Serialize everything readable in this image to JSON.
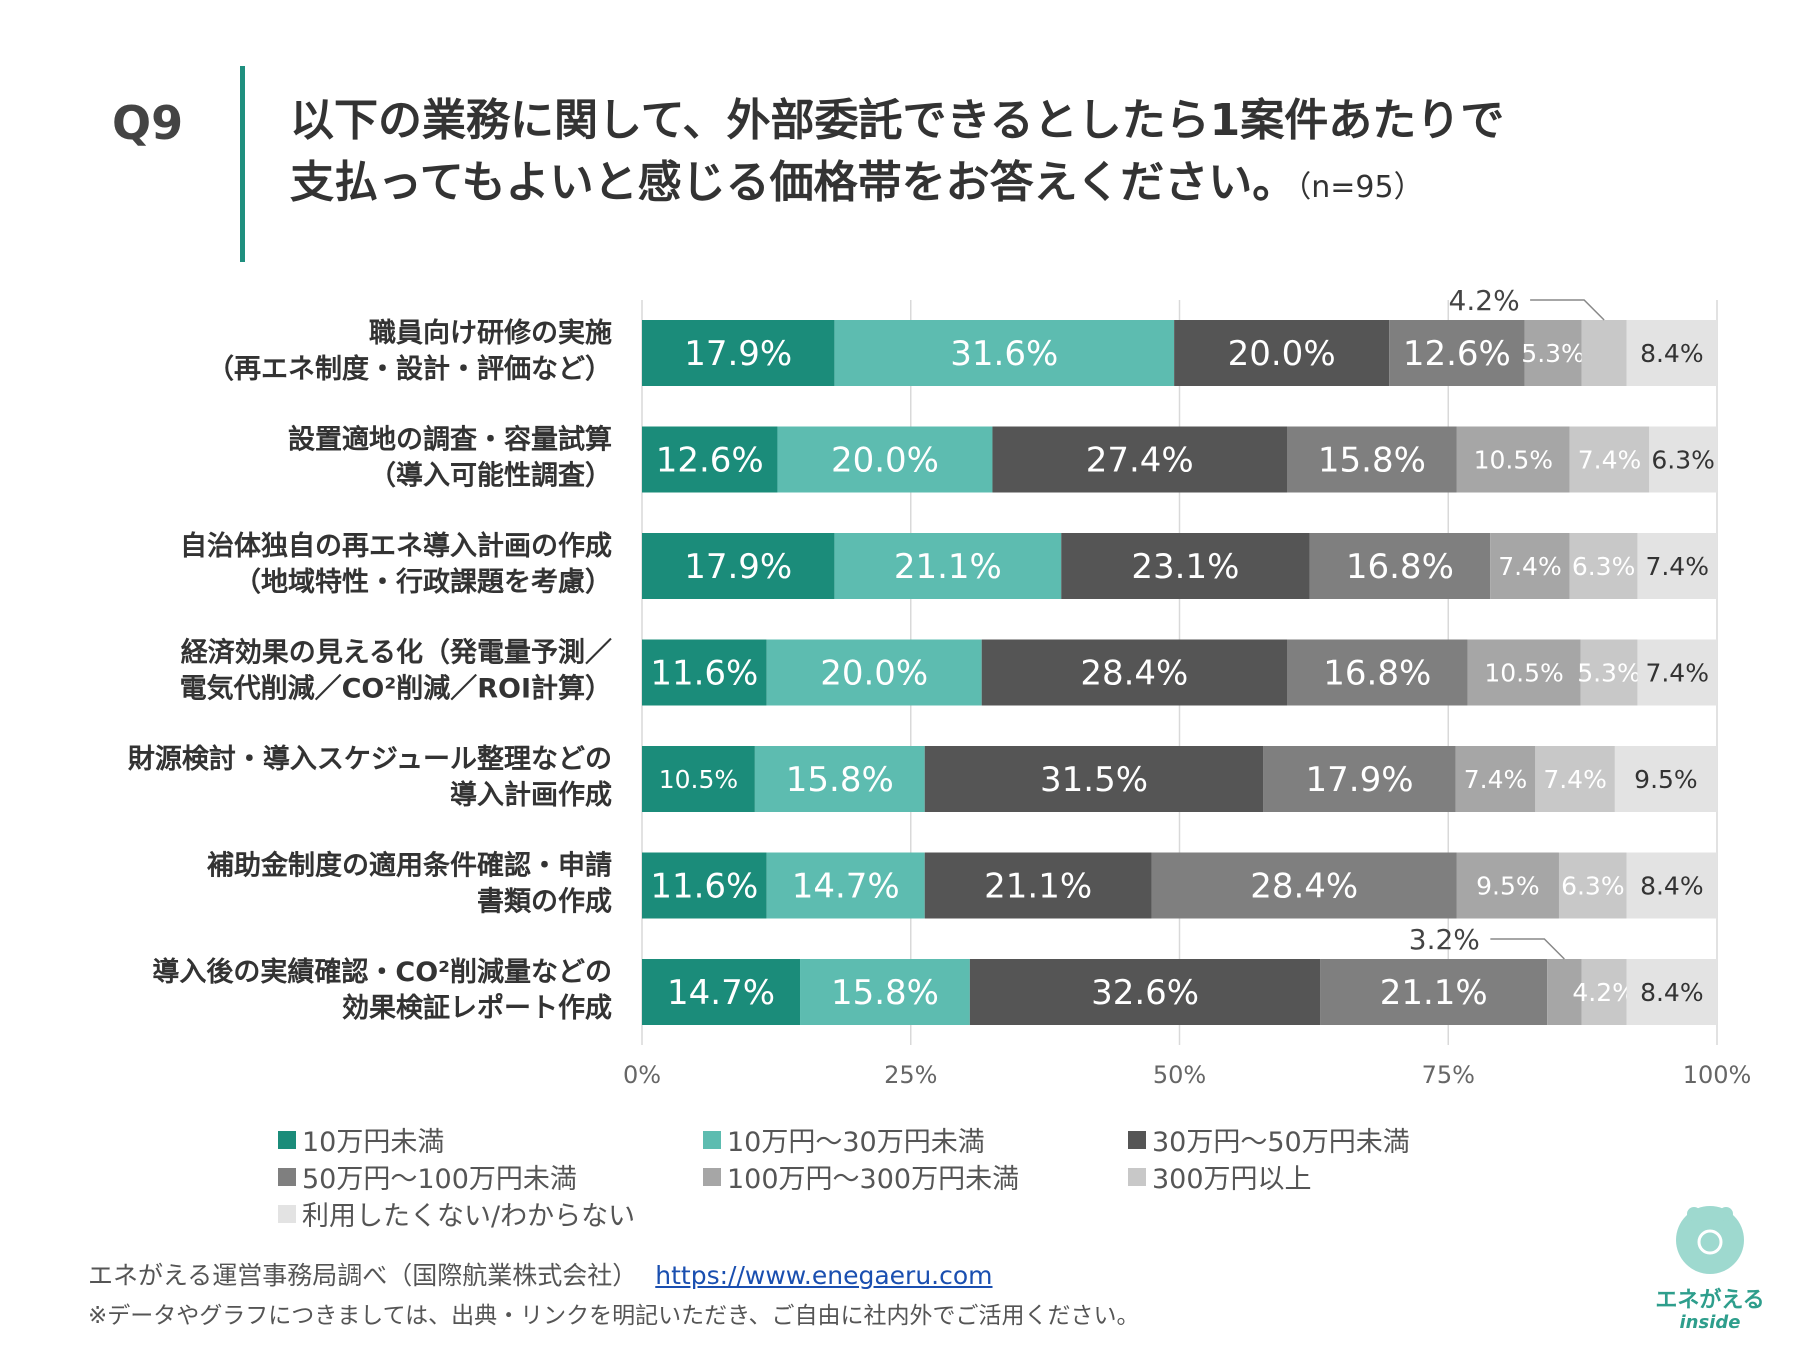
{
  "question": {
    "label": "Q9",
    "title_line1": "以下の業務に関して、外部委託できるとしたら1案件あたりで",
    "title_line2": "支払ってもよいと感じる価格帯をお答えください。",
    "n": "（n=95）"
  },
  "chart_data": {
    "type": "bar",
    "orientation": "horizontal-stacked-100",
    "categories": [
      [
        "職員向け研修の実施",
        "（再エネ制度・設計・評価など）"
      ],
      [
        "設置適地の調査・容量試算",
        "（導入可能性調査）"
      ],
      [
        "自治体独自の再エネ導入計画の作成",
        "（地域特性・行政課題を考慮）"
      ],
      [
        "経済効果の見える化（発電量予測／",
        "電気代削減／CO²削減／ROI計算）"
      ],
      [
        "財源検討・導入スケジュール整理などの",
        "導入計画作成"
      ],
      [
        "補助金制度の適用条件確認・申請",
        "書類の作成"
      ],
      [
        "導入後の実績確認・CO²削減量などの",
        "効果検証レポート作成"
      ]
    ],
    "series": [
      {
        "name": "10万円未満",
        "color": "#1b8c7a",
        "label_color": "#ffffff",
        "values": [
          17.9,
          12.6,
          17.9,
          11.6,
          10.5,
          11.6,
          14.7
        ]
      },
      {
        "name": "10万円～30万円未満",
        "color": "#5dbcb0",
        "label_color": "#ffffff",
        "values": [
          31.6,
          20.0,
          21.1,
          20.0,
          15.8,
          14.7,
          15.8
        ]
      },
      {
        "name": "30万円～50万円未満",
        "color": "#555555",
        "label_color": "#ffffff",
        "values": [
          20.0,
          27.4,
          23.1,
          28.4,
          31.5,
          21.1,
          32.6
        ]
      },
      {
        "name": "50万円～100万円未満",
        "color": "#7f7f7f",
        "label_color": "#ffffff",
        "values": [
          12.6,
          15.8,
          16.8,
          16.8,
          17.9,
          28.4,
          21.1
        ]
      },
      {
        "name": "100万円～300万円未満",
        "color": "#a6a6a6",
        "label_color": "#ffffff",
        "values": [
          5.3,
          10.5,
          7.4,
          10.5,
          7.4,
          9.5,
          3.2
        ]
      },
      {
        "name": "300万円以上",
        "color": "#c8c8c8",
        "label_color": "#ffffff",
        "values": [
          4.2,
          7.4,
          6.3,
          5.3,
          7.4,
          6.3,
          4.2
        ]
      },
      {
        "name": "利用したくない/わからない",
        "color": "#e3e3e3",
        "label_color": "#333333",
        "values": [
          8.4,
          6.3,
          7.4,
          7.4,
          9.5,
          8.4,
          8.4
        ]
      }
    ],
    "callouts": [
      {
        "row": 0,
        "series": 5,
        "text": "4.2%"
      },
      {
        "row": 6,
        "series": 4,
        "text": "3.2%"
      }
    ],
    "xlim": [
      0,
      100
    ],
    "xticks": [
      "0%",
      "25%",
      "50%",
      "75%",
      "100%"
    ],
    "grid": true,
    "legend": "bottom"
  },
  "footer": {
    "source": "エネがえる運営事務局調べ（国際航業株式会社）",
    "url": "https://www.enegaeru.com",
    "note": "※データやグラフにつきましては、出典・リンクを明記いただき、ご自由に社内外でご活用ください。"
  },
  "logo": {
    "text": "エネがえる",
    "sub": "inside"
  }
}
